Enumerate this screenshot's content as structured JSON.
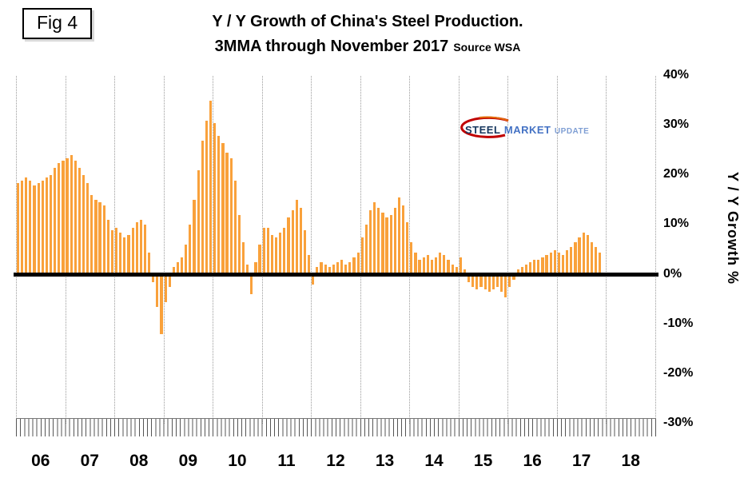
{
  "fig_label": "Fig 4",
  "title": {
    "line1": "Y / Y Growth of China's Steel Production.",
    "line2": "3MMA through November 2017",
    "source": "Source WSA"
  },
  "logo": {
    "part1": "STEEL",
    "part2": "MARKET",
    "part3": "UPDATE"
  },
  "colors": {
    "bar": "#F9A13B",
    "zero_line": "#000000",
    "grid": "#9B9B9B"
  },
  "chart_data": {
    "type": "bar",
    "title": "Y / Y Growth of China's Steel Production. 3MMA through November 2017",
    "source": "WSA",
    "ylabel": "Y / Y Growth %",
    "ylim": [
      -30,
      40
    ],
    "grid": "vertical-dotted-yearly",
    "legend": "none",
    "start_month": "2006-01",
    "end_month": "2017-11",
    "x_labels": [
      "06",
      "07",
      "08",
      "09",
      "10",
      "11",
      "12",
      "13",
      "14",
      "15",
      "16",
      "17",
      "18"
    ],
    "x_axis_total_months": 156,
    "y_ticks": [
      {
        "v": 40,
        "label": "40%"
      },
      {
        "v": 30,
        "label": "30%"
      },
      {
        "v": 20,
        "label": "20%"
      },
      {
        "v": 10,
        "label": "10%"
      },
      {
        "v": 0,
        "label": "0%"
      },
      {
        "v": -10,
        "label": "-10%"
      },
      {
        "v": -20,
        "label": "-20%"
      },
      {
        "v": -30,
        "label": "-30%"
      }
    ],
    "values": [
      18.5,
      19,
      19.5,
      19,
      18,
      18.5,
      19,
      19.5,
      20,
      21.5,
      22.5,
      23,
      23.5,
      24,
      23,
      21.5,
      20,
      18.5,
      16,
      15,
      14.5,
      14,
      11,
      9,
      9.5,
      8.5,
      7.5,
      8,
      9.5,
      10.5,
      11,
      10,
      4.5,
      -1.5,
      -6.5,
      -12,
      -5.5,
      -2.5,
      1.5,
      2.5,
      3.5,
      6,
      10,
      15,
      21,
      27,
      31,
      35,
      30.5,
      28,
      26.5,
      24.5,
      23.5,
      19,
      12,
      6.5,
      2,
      -4,
      2.5,
      6,
      9.5,
      9.5,
      8,
      7.5,
      8.5,
      9.5,
      11.5,
      13,
      15,
      13.5,
      9,
      4,
      -2,
      1.5,
      2.5,
      2,
      1.5,
      2,
      2.5,
      3,
      2,
      2.5,
      3.5,
      4.5,
      7.5,
      10,
      13,
      14.5,
      13.5,
      12.5,
      11.5,
      12,
      13.5,
      15.5,
      14,
      10.5,
      6.5,
      4.5,
      3,
      3.5,
      4,
      3,
      3.5,
      4.5,
      4,
      3,
      2,
      1.5,
      3.5,
      1,
      -1.5,
      -2.5,
      -3,
      -2.5,
      -3,
      -3.5,
      -3,
      -2.5,
      -3.5,
      -4.5,
      -2.5,
      -1,
      1,
      1.5,
      2,
      2.5,
      3,
      3,
      3.5,
      4,
      4.5,
      5,
      4.5,
      4,
      5,
      5.5,
      6.5,
      7.5,
      8.5,
      8,
      6.5,
      5.5,
      4.5
    ]
  }
}
